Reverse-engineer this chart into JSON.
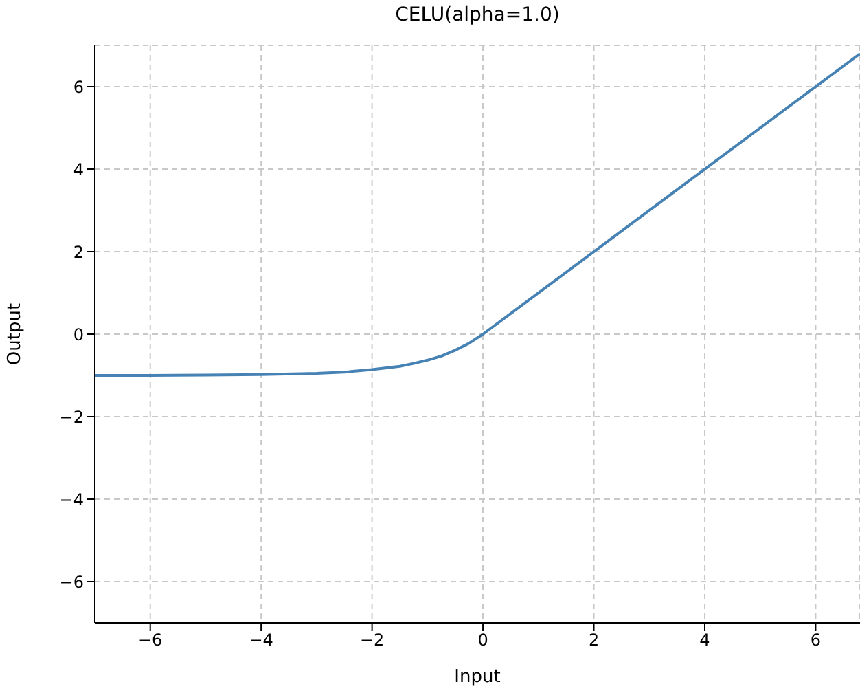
{
  "chart_data": {
    "type": "line",
    "title": "CELU(alpha=1.0)",
    "xlabel": "Input",
    "ylabel": "Output",
    "x": [
      -7,
      -6,
      -5,
      -4,
      -3,
      -2.5,
      -2,
      -1.5,
      -1.25,
      -1,
      -0.75,
      -0.5,
      -0.25,
      0,
      6.8
    ],
    "series": [
      {
        "color": "#4682b4",
        "values": [
          -1.0,
          -1.0,
          -0.99,
          -0.98,
          -0.95,
          -0.92,
          -0.86,
          -0.78,
          -0.71,
          -0.63,
          -0.53,
          -0.39,
          -0.22,
          0,
          6.8
        ]
      }
    ],
    "xlim": [
      -7,
      6.8
    ],
    "ylim": [
      -7,
      7
    ],
    "xticks": [
      {
        "value": -6,
        "label": "−6"
      },
      {
        "value": -4,
        "label": "−4"
      },
      {
        "value": -2,
        "label": "−2"
      },
      0,
      2,
      4,
      6
    ],
    "yticks": [
      {
        "value": -6,
        "label": "−6"
      },
      {
        "value": -4,
        "label": "−4"
      },
      {
        "value": -2,
        "label": "−2"
      },
      0,
      2,
      4,
      6
    ],
    "grid": true,
    "legend": false,
    "marker": "none",
    "line_style": "solid"
  }
}
